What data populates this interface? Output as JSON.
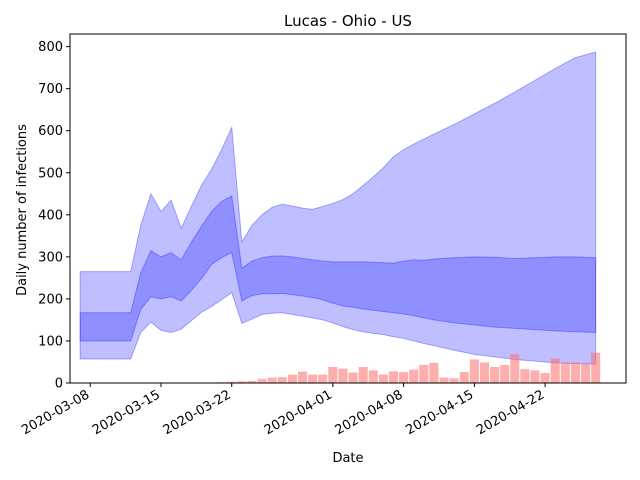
{
  "chart_data": {
    "type": "area",
    "title": "Lucas - Ohio - US",
    "xlabel": "Date",
    "ylabel": "Daily number of infections",
    "x_ticks": [
      "2020-03-08",
      "2020-03-15",
      "2020-03-22",
      "2020-04-01",
      "2020-04-08",
      "2020-04-15",
      "2020-04-22"
    ],
    "y_ticks": [
      0,
      100,
      200,
      300,
      400,
      500,
      600,
      700,
      800
    ],
    "ylim": [
      0,
      830
    ],
    "xlim": [
      "2020-03-06",
      "2020-04-30"
    ],
    "grid": false,
    "legend": "none",
    "colors": {
      "band": "#0000ff",
      "bars": "#ff6b6b"
    },
    "series": [
      {
        "type": "band",
        "level": "outer",
        "dates": [
          "2020-03-07",
          "2020-03-10",
          "2020-03-11",
          "2020-03-12",
          "2020-03-13",
          "2020-03-14",
          "2020-03-15",
          "2020-03-16",
          "2020-03-17",
          "2020-03-18",
          "2020-03-19",
          "2020-03-20",
          "2020-03-21",
          "2020-03-22",
          "2020-03-23",
          "2020-03-24",
          "2020-03-25",
          "2020-03-26",
          "2020-03-27",
          "2020-03-28",
          "2020-03-29",
          "2020-03-30",
          "2020-03-31",
          "2020-04-01",
          "2020-04-02",
          "2020-04-03",
          "2020-04-04",
          "2020-04-05",
          "2020-04-06",
          "2020-04-07",
          "2020-04-08",
          "2020-04-09",
          "2020-04-10",
          "2020-04-11",
          "2020-04-13",
          "2020-04-15",
          "2020-04-17",
          "2020-04-19",
          "2020-04-21",
          "2020-04-23",
          "2020-04-25",
          "2020-04-27"
        ],
        "lower": [
          57,
          57,
          57,
          57,
          120,
          145,
          125,
          120,
          128,
          148,
          168,
          182,
          198,
          215,
          142,
          152,
          163,
          166,
          167,
          163,
          159,
          155,
          150,
          143,
          134,
          127,
          122,
          118,
          115,
          110,
          106,
          100,
          94,
          89,
          78,
          68,
          62,
          56,
          52,
          48,
          46,
          45
        ],
        "upper": [
          265,
          265,
          265,
          265,
          375,
          450,
          408,
          435,
          368,
          420,
          470,
          508,
          555,
          608,
          335,
          375,
          400,
          418,
          425,
          421,
          416,
          413,
          420,
          427,
          436,
          450,
          470,
          490,
          512,
          538,
          555,
          568,
          580,
          592,
          615,
          640,
          665,
          692,
          720,
          748,
          774,
          787
        ]
      },
      {
        "type": "band",
        "level": "inner",
        "dates": [
          "2020-03-07",
          "2020-03-10",
          "2020-03-11",
          "2020-03-12",
          "2020-03-13",
          "2020-03-14",
          "2020-03-15",
          "2020-03-16",
          "2020-03-17",
          "2020-03-18",
          "2020-03-19",
          "2020-03-20",
          "2020-03-21",
          "2020-03-22",
          "2020-03-23",
          "2020-03-24",
          "2020-03-25",
          "2020-03-26",
          "2020-03-27",
          "2020-03-28",
          "2020-03-29",
          "2020-03-30",
          "2020-03-31",
          "2020-04-01",
          "2020-04-02",
          "2020-04-03",
          "2020-04-04",
          "2020-04-05",
          "2020-04-06",
          "2020-04-07",
          "2020-04-08",
          "2020-04-09",
          "2020-04-10",
          "2020-04-11",
          "2020-04-13",
          "2020-04-15",
          "2020-04-17",
          "2020-04-19",
          "2020-04-21",
          "2020-04-23",
          "2020-04-25",
          "2020-04-27"
        ],
        "lower": [
          100,
          100,
          100,
          100,
          175,
          205,
          200,
          205,
          195,
          220,
          248,
          282,
          298,
          310,
          195,
          208,
          212,
          212,
          213,
          210,
          207,
          203,
          198,
          190,
          183,
          180,
          176,
          173,
          170,
          167,
          164,
          160,
          155,
          150,
          143,
          138,
          133,
          130,
          127,
          124,
          122,
          120
        ],
        "upper": [
          167,
          167,
          167,
          167,
          262,
          315,
          300,
          310,
          293,
          335,
          372,
          408,
          432,
          445,
          273,
          290,
          298,
          302,
          302,
          300,
          296,
          293,
          290,
          288,
          288,
          288,
          288,
          287,
          286,
          285,
          290,
          293,
          292,
          295,
          298,
          300,
          299,
          296,
          298,
          300,
          300,
          298
        ]
      },
      {
        "type": "bar",
        "name": "",
        "dates": [
          "2020-03-21",
          "2020-03-22",
          "2020-03-23",
          "2020-03-24",
          "2020-03-25",
          "2020-03-26",
          "2020-03-27",
          "2020-03-28",
          "2020-03-29",
          "2020-03-30",
          "2020-03-31",
          "2020-04-01",
          "2020-04-02",
          "2020-04-03",
          "2020-04-04",
          "2020-04-05",
          "2020-04-06",
          "2020-04-07",
          "2020-04-08",
          "2020-04-09",
          "2020-04-10",
          "2020-04-11",
          "2020-04-12",
          "2020-04-13",
          "2020-04-14",
          "2020-04-15",
          "2020-04-16",
          "2020-04-17",
          "2020-04-18",
          "2020-04-19",
          "2020-04-20",
          "2020-04-21",
          "2020-04-22",
          "2020-04-23",
          "2020-04-24",
          "2020-04-25",
          "2020-04-26",
          "2020-04-27"
        ],
        "values": [
          2,
          3,
          4,
          5,
          10,
          13,
          14,
          20,
          27,
          20,
          20,
          38,
          34,
          25,
          38,
          30,
          20,
          28,
          26,
          32,
          43,
          48,
          13,
          11,
          26,
          56,
          49,
          38,
          43,
          69,
          33,
          30,
          24,
          58,
          49,
          49,
          47,
          72
        ]
      }
    ]
  }
}
